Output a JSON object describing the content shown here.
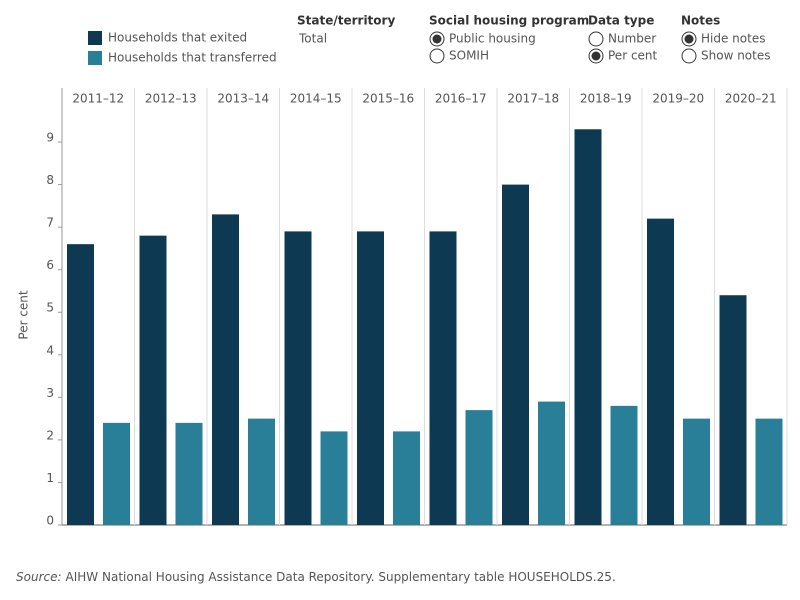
{
  "chart_data": {
    "type": "bar",
    "categories": [
      "2011–12",
      "2012–13",
      "2013–14",
      "2014–15",
      "2015–16",
      "2016–17",
      "2017–18",
      "2018–19",
      "2019–20",
      "2020–21"
    ],
    "series": [
      {
        "name": "Households that exited",
        "color": "#0d3a52",
        "values": [
          6.6,
          6.8,
          7.3,
          6.9,
          6.9,
          6.9,
          8.0,
          9.3,
          7.2,
          5.4
        ]
      },
      {
        "name": "Households that transferred",
        "color": "#2a7f98",
        "values": [
          2.4,
          2.4,
          2.5,
          2.2,
          2.2,
          2.7,
          2.9,
          2.8,
          2.5,
          2.5
        ]
      }
    ],
    "ylabel": "Per cent",
    "ylim": [
      0,
      9.8
    ],
    "yticks": [
      0,
      1,
      2,
      3,
      4,
      5,
      6,
      7,
      8,
      9
    ],
    "source_label": "Source:",
    "source": "AIHW National Housing Assistance Data Repository. Supplementary table HOUSEHOLDS.25."
  },
  "controls": [
    {
      "title": "State/territory",
      "value": "Total"
    },
    {
      "title": "Social housing program",
      "options": [
        {
          "label": "Public housing",
          "selected": true
        },
        {
          "label": "SOMIH",
          "selected": false
        }
      ]
    },
    {
      "title": "Data type",
      "options": [
        {
          "label": "Number",
          "selected": false
        },
        {
          "label": "Per cent",
          "selected": true
        }
      ]
    },
    {
      "title": "Notes",
      "options": [
        {
          "label": "Hide notes",
          "selected": true
        },
        {
          "label": "Show notes",
          "selected": false
        }
      ]
    }
  ]
}
